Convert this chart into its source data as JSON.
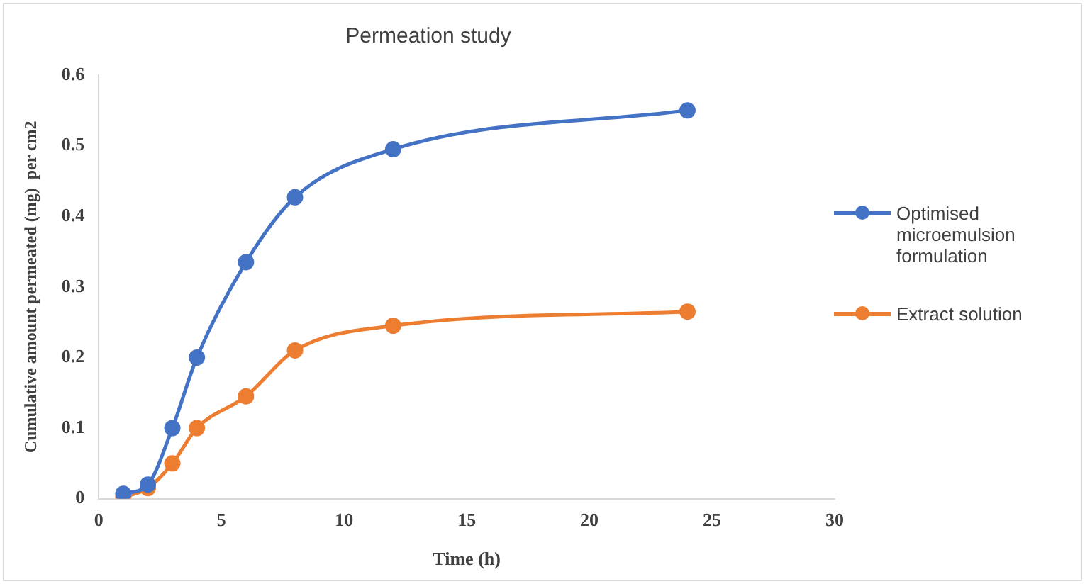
{
  "chart_data": {
    "type": "line",
    "title": "Permeation study",
    "xlabel": "Time (h)",
    "ylabel": "Cumulative amount permeated (mg)  per cm2",
    "x": [
      1,
      2,
      3,
      4,
      6,
      8,
      12,
      24
    ],
    "series": [
      {
        "name": "Optimised microemulsion formulation",
        "color": "#4472c4",
        "values": [
          0.007,
          0.02,
          0.1,
          0.2,
          0.335,
          0.427,
          0.495,
          0.55
        ]
      },
      {
        "name": "Extract solution",
        "color": "#ed7d31",
        "values": [
          0.002,
          0.015,
          0.05,
          0.1,
          0.145,
          0.21,
          0.245,
          0.265
        ]
      }
    ],
    "xlim": [
      0,
      30
    ],
    "xticks": [
      0,
      5,
      10,
      15,
      20,
      25,
      30
    ],
    "ylim": [
      0,
      0.6
    ],
    "yticks": [
      0,
      0.1,
      0.2,
      0.3,
      0.4,
      0.5,
      0.6
    ],
    "grid": false,
    "legend": "right",
    "marker": "circle",
    "line_style": "solid"
  }
}
